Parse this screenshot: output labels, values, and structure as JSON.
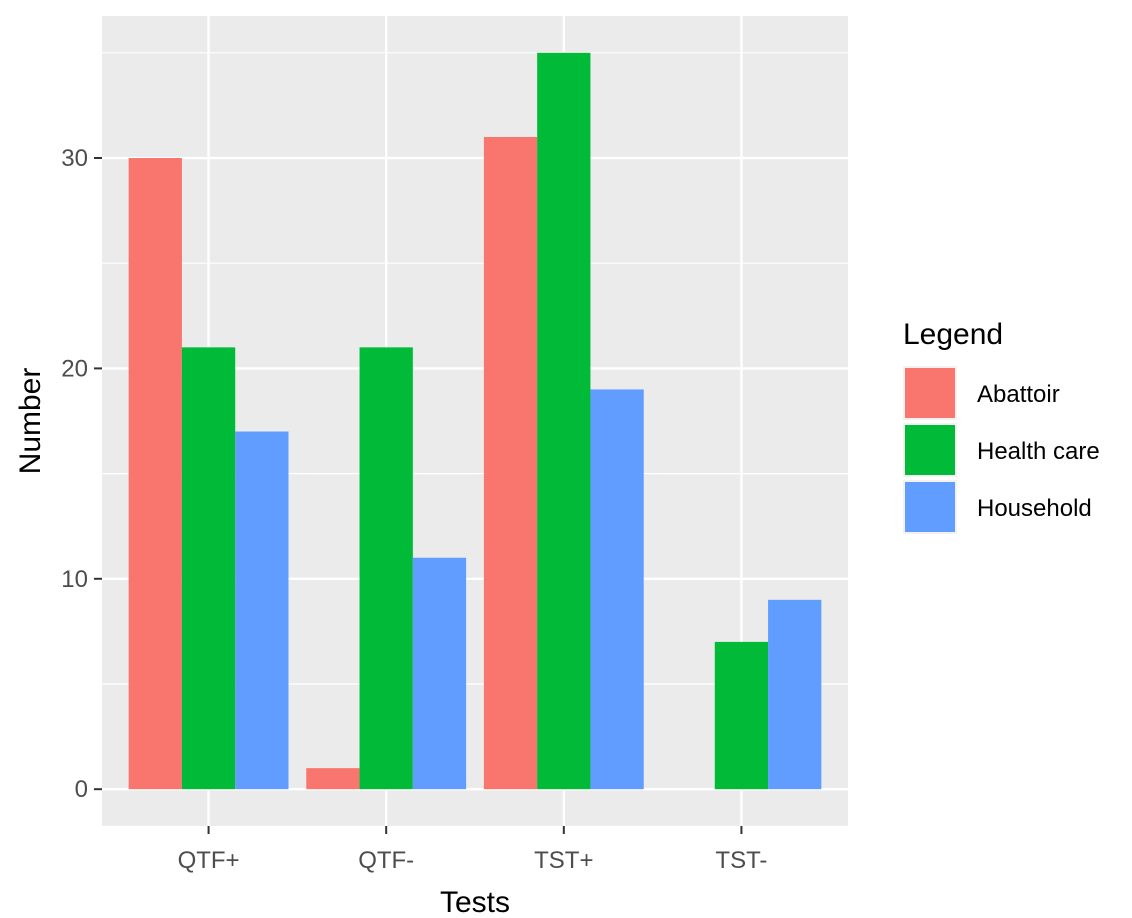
{
  "chart_data": {
    "type": "bar",
    "title": "",
    "xlabel": "Tests",
    "ylabel": "Number",
    "categories": [
      "QTF+",
      "QTF-",
      "TST+",
      "TST-"
    ],
    "ylim": [
      -1.75,
      36.75
    ],
    "yticks": [
      0,
      10,
      20,
      30
    ],
    "grid": true,
    "legend": {
      "title": "Legend",
      "position": "right"
    },
    "series": [
      {
        "name": "Abattoir",
        "color": "#F8766D",
        "values": [
          30,
          1,
          31,
          0
        ]
      },
      {
        "name": "Health care",
        "color": "#00BA38",
        "values": [
          21,
          21,
          35,
          7
        ]
      },
      {
        "name": "Household",
        "color": "#619CFF",
        "values": [
          17,
          11,
          19,
          9
        ]
      }
    ]
  }
}
